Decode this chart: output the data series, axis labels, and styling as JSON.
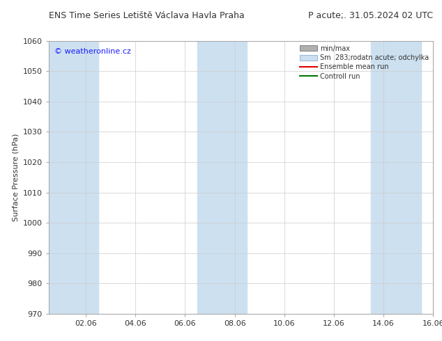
{
  "title": "ENS Time Series Letiště Václava Havla Praha",
  "title_right": "P acute;. 31.05.2024 02 UTC",
  "ylabel": "Surface Pressure (hPa)",
  "ylim": [
    970,
    1060
  ],
  "yticks": [
    970,
    980,
    990,
    1000,
    1010,
    1020,
    1030,
    1040,
    1050,
    1060
  ],
  "xlabel_ticks": [
    "02.06",
    "04.06",
    "06.06",
    "08.06",
    "10.06",
    "12.06",
    "14.06",
    "16.06"
  ],
  "x_tick_positions": [
    2,
    4,
    6,
    8,
    10,
    12,
    14,
    16
  ],
  "watermark": "© weatheronline.cz",
  "watermark_color": "#1a1aff",
  "background_color": "#ffffff",
  "plot_bg_color": "#ffffff",
  "shaded_bands": [
    {
      "x_start": 0.5,
      "x_end": 2.5
    },
    {
      "x_start": 6.5,
      "x_end": 8.5
    },
    {
      "x_start": 13.5,
      "x_end": 15.5
    }
  ],
  "shaded_color": "#cce0f0",
  "x_min": 0.5,
  "x_max": 15.5,
  "legend_labels": [
    "min/max",
    "Sm  283;rodatn acute; odchylka",
    "Ensemble mean run",
    "Controll run"
  ],
  "legend_colors_patch": [
    "#b0b0b0",
    "#cce0f0"
  ],
  "legend_colors_line": [
    "#dd0000",
    "#007700"
  ],
  "title_fontsize": 9,
  "ylabel_fontsize": 8,
  "tick_fontsize": 8,
  "legend_fontsize": 7,
  "watermark_fontsize": 8
}
